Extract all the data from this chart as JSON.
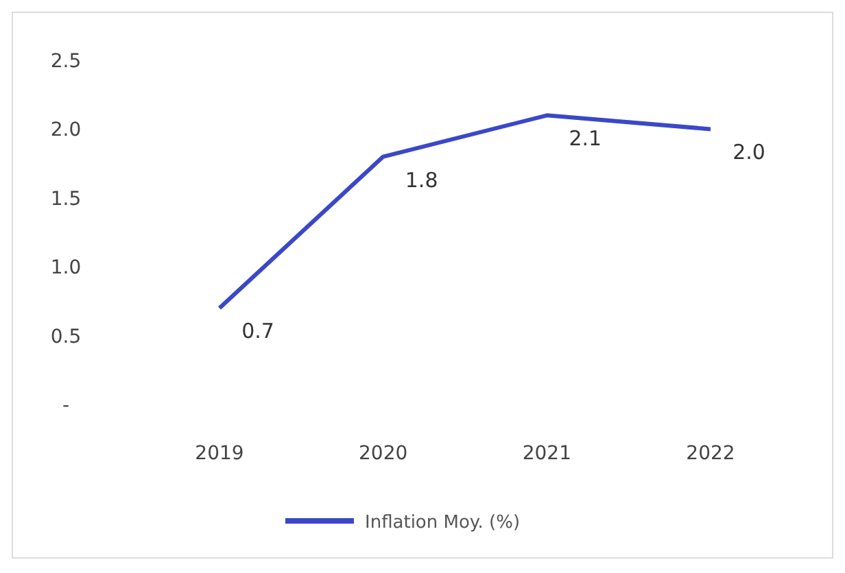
{
  "chart_data": {
    "type": "line",
    "categories": [
      "2019",
      "2020",
      "2021",
      "2022"
    ],
    "series": [
      {
        "name": "Inflation Moy. (%)",
        "color": "#3a48c8",
        "values": [
          0.7,
          1.8,
          2.1,
          2.0
        ]
      }
    ],
    "ylim": [
      0,
      2.5
    ],
    "yticks": [
      {
        "value": 0,
        "label": "-"
      },
      {
        "value": 0.5,
        "label": "0.5"
      },
      {
        "value": 1,
        "label": "1.0"
      },
      {
        "value": 1.5,
        "label": "1.5"
      },
      {
        "value": 2,
        "label": "2.0"
      },
      {
        "value": 2.5,
        "label": "2.5"
      }
    ],
    "value_labels": [
      "0.7",
      "1.8",
      "2.1",
      "2.0"
    ],
    "legend": "bottom",
    "grid": false,
    "marker": "none",
    "line_style": "solid"
  }
}
